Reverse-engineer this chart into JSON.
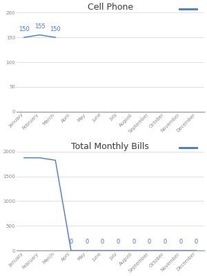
{
  "months": [
    "January",
    "February",
    "March",
    "April",
    "May",
    "June",
    "July",
    "August",
    "September",
    "October",
    "November",
    "December"
  ],
  "cell_phone_values": [
    150,
    155,
    150,
    null,
    null,
    null,
    null,
    null,
    null,
    null,
    null,
    null
  ],
  "cell_phone_title": "Cell Phone",
  "cell_phone_ylim": [
    0,
    200
  ],
  "cell_phone_yticks": [
    0,
    50,
    100,
    150,
    200
  ],
  "total_bills_values": [
    1875,
    1875,
    1825,
    0,
    0,
    0,
    0,
    0,
    0,
    0,
    0,
    0
  ],
  "total_bills_title": "Total Monthly Bills",
  "total_bills_ylim": [
    0,
    2000
  ],
  "total_bills_yticks": [
    0,
    500,
    1000,
    1500,
    2000
  ],
  "line_color": "#4472C4",
  "label_color": "#4472C4",
  "grid_color": "#d0d0d0",
  "bottom_spine_color": "#888888",
  "bg_color": "#ffffff",
  "tick_label_color": "#888888",
  "title_color": "#333333",
  "title_fontsize": 9,
  "tick_fontsize": 5.0,
  "data_label_fontsize": 6.0
}
